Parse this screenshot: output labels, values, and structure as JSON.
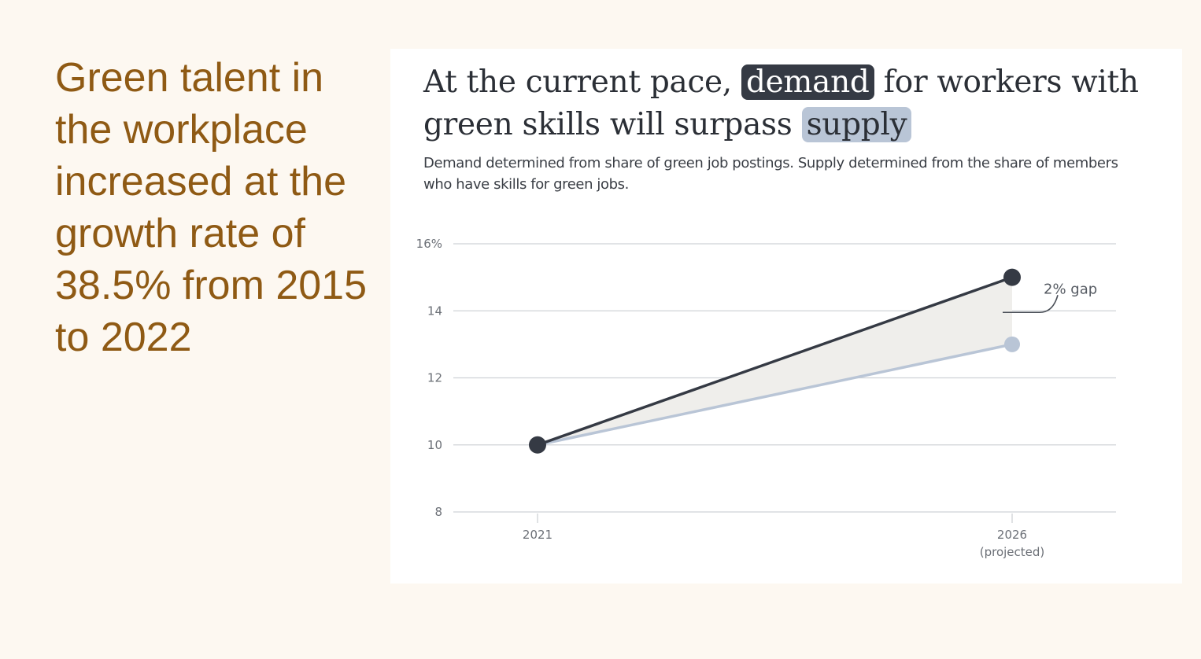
{
  "headline": "Green talent in the workplace increased at the growth rate of 38.5% from 2015 to 2022",
  "colors": {
    "headline": "#8f5a14",
    "demand": "#353a44",
    "supply": "#b9c5d6",
    "gap_fill": "#efeeeb",
    "grid": "#cfd2d6"
  },
  "chart_data": {
    "type": "line",
    "title": {
      "pre": "At the current pace,",
      "highlight1": "demand",
      "mid": "for workers with green skills will surpass",
      "highlight2": "supply"
    },
    "subtitle": "Demand determined from share of green job postings. Supply determined from the share of members who have skills for green jobs.",
    "x": [
      "2021",
      "2026"
    ],
    "x_sublabels": [
      "",
      "(projected)"
    ],
    "y_ticks": [
      "8",
      "10",
      "12",
      "14",
      "16%"
    ],
    "y_tick_values": [
      8,
      10,
      12,
      14,
      16
    ],
    "ylim": [
      8,
      16
    ],
    "grid": true,
    "series": [
      {
        "key": "demand",
        "values": [
          10,
          15
        ]
      },
      {
        "key": "supply",
        "values": [
          10,
          13
        ]
      }
    ],
    "annotation": {
      "text": "2% gap",
      "x": "2026"
    }
  }
}
